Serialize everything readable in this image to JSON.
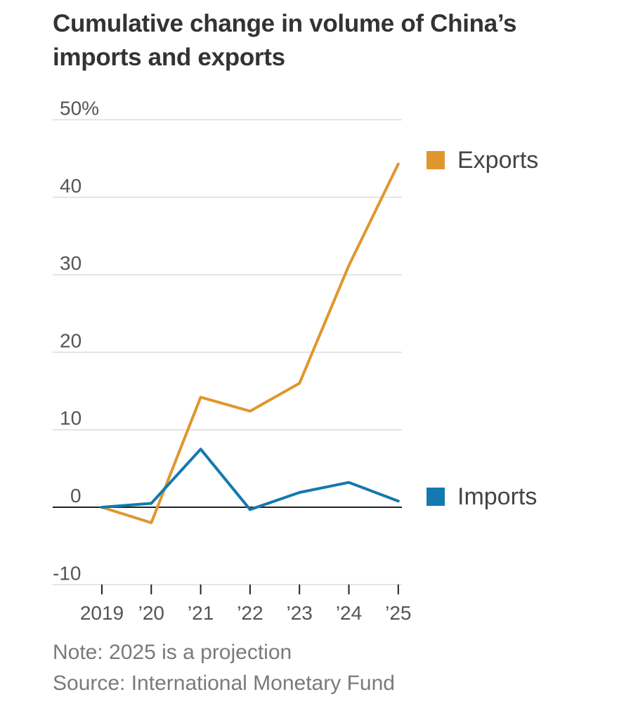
{
  "chart_data": {
    "type": "line",
    "title": "Cumulative change in volume of China’s imports and exports",
    "title_lines": [
      "Cumulative change in volume of China’s",
      "imports and exports"
    ],
    "x": [
      "2019",
      "’20",
      "’21",
      "’22",
      "’23",
      "’24",
      "’25"
    ],
    "y_ticks": [
      50,
      40,
      30,
      20,
      10,
      0,
      -10
    ],
    "y_tick_labels": [
      "50%",
      "40",
      "30",
      "20",
      "10",
      "0",
      "-10"
    ],
    "ylim": [
      -10,
      50
    ],
    "xlabel": "",
    "ylabel": "",
    "grid": true,
    "series": [
      {
        "name": "Exports",
        "color": "#e0962e",
        "values": [
          0,
          -2,
          14.2,
          12.4,
          16,
          31.2,
          44.3
        ]
      },
      {
        "name": "Imports",
        "color": "#1479b0",
        "values": [
          0,
          0.5,
          7.5,
          -0.3,
          1.9,
          3.2,
          0.8
        ]
      }
    ],
    "legend_placement": "right, at series ends",
    "note": "Note: 2025 is a projection",
    "source": "Source: International Monetary Fund"
  }
}
